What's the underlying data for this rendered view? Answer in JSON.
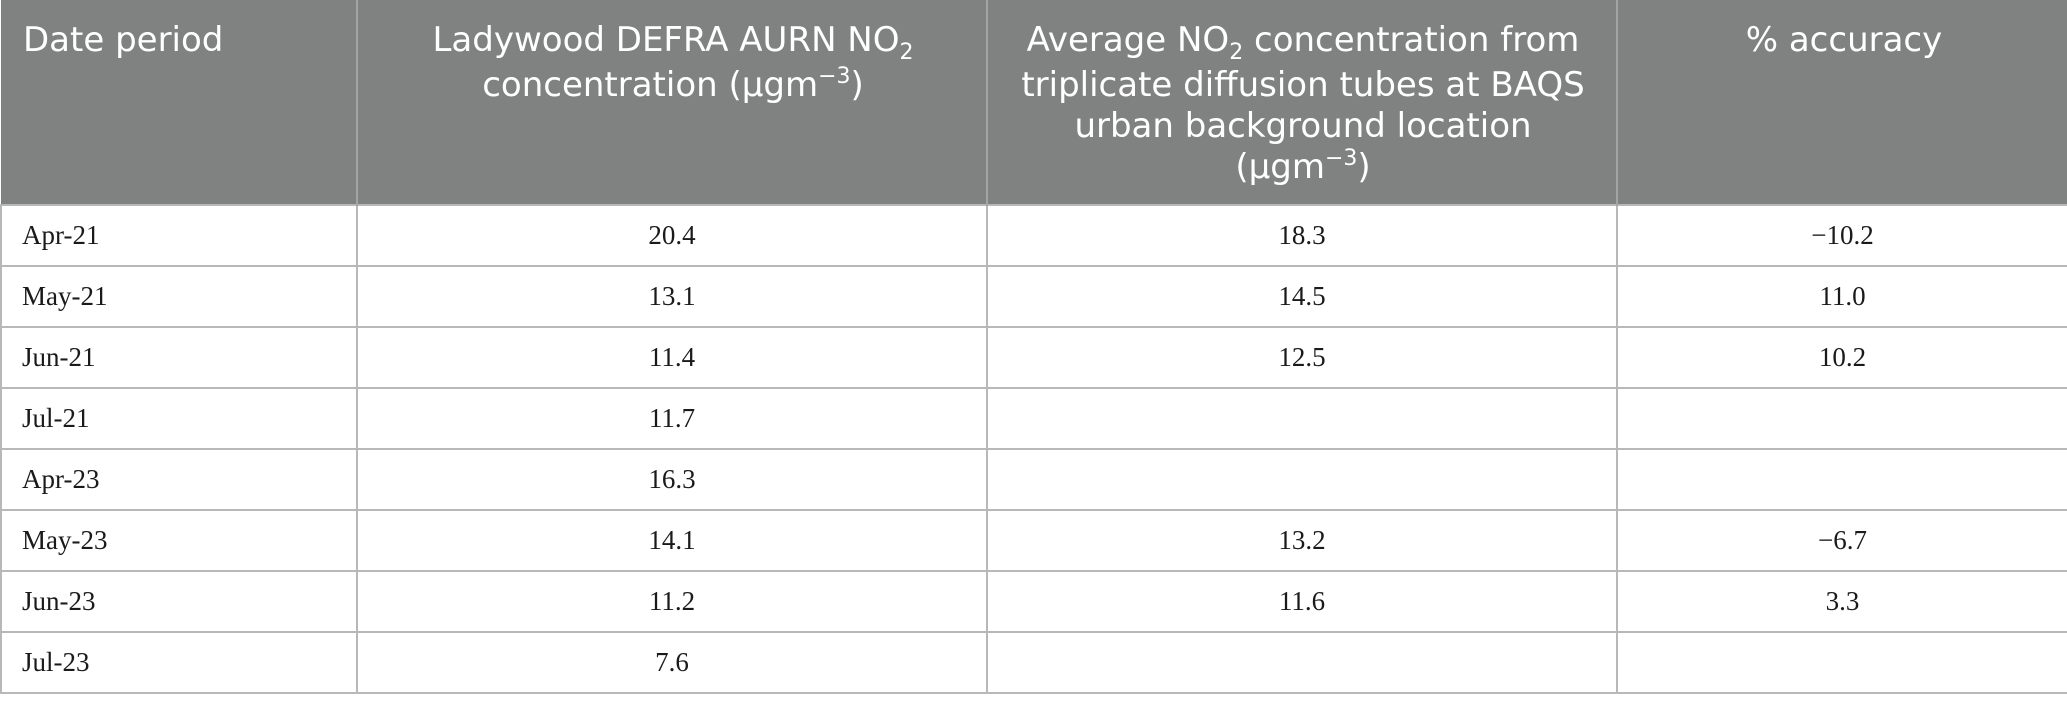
{
  "table": {
    "headers": {
      "date_period": "Date period",
      "ladywood": {
        "pre": "Ladywood DEFRA AURN NO",
        "sub": "2",
        "mid": "concentration (μgm",
        "sup": "−3",
        "post": ")"
      },
      "average": {
        "pre": "Average NO",
        "sub": "2",
        "mid": "concentration from triplicate diffusion tubes at BAQS urban background location (μgm",
        "sup": "−3",
        "post": ")"
      },
      "accuracy": "% accuracy"
    },
    "rows": [
      {
        "period": "Apr-21",
        "ladywood": "20.4",
        "average": "18.3",
        "accuracy": "−10.2"
      },
      {
        "period": "May-21",
        "ladywood": "13.1",
        "average": "14.5",
        "accuracy": "11.0"
      },
      {
        "period": "Jun-21",
        "ladywood": "11.4",
        "average": "12.5",
        "accuracy": "10.2"
      },
      {
        "period": "Jul-21",
        "ladywood": "11.7",
        "average": "",
        "accuracy": ""
      },
      {
        "period": "Apr-23",
        "ladywood": "16.3",
        "average": "",
        "accuracy": ""
      },
      {
        "period": "May-23",
        "ladywood": "14.1",
        "average": "13.2",
        "accuracy": "−6.7"
      },
      {
        "period": "Jun-23",
        "ladywood": "11.2",
        "average": "11.6",
        "accuracy": "3.3"
      },
      {
        "period": "Jul-23",
        "ladywood": "7.6",
        "average": "",
        "accuracy": ""
      }
    ]
  }
}
